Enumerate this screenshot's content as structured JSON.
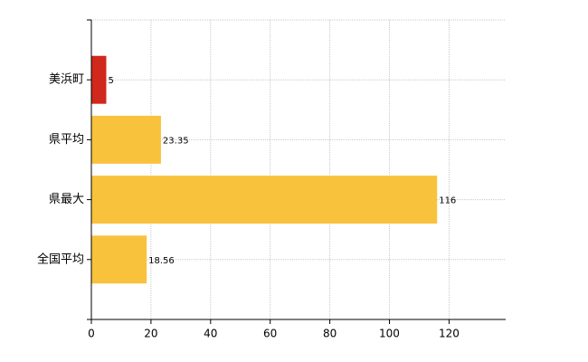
{
  "chart_data": {
    "type": "bar",
    "orientation": "horizontal",
    "categories": [
      "美浜町",
      "県平均",
      "県最大",
      "全国平均"
    ],
    "values": [
      5,
      23.35,
      116,
      18.56
    ],
    "colors": [
      "#d0281c",
      "#f9c23c",
      "#f9c23c",
      "#f9c23c"
    ],
    "xlim": [
      0,
      139
    ],
    "xticks": [
      0,
      20,
      40,
      60,
      80,
      100,
      120
    ],
    "grid": true
  }
}
